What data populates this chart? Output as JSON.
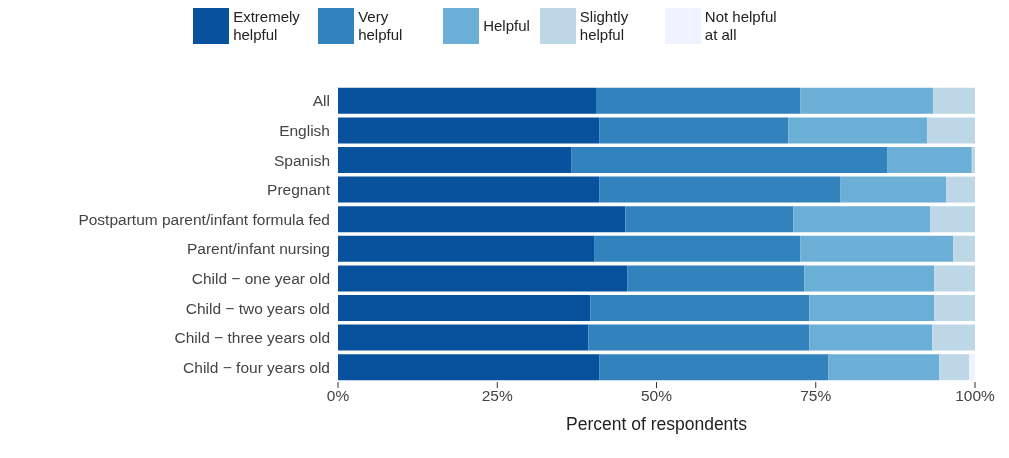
{
  "chart_data": {
    "type": "bar",
    "orientation": "horizontal",
    "stacked": true,
    "xlabel": "Percent of respondents",
    "categories": [
      "All",
      "English",
      "Spanish",
      "Pregnant",
      "Postpartum parent/infant formula fed",
      "Parent/infant nursing",
      "Child − one year old",
      "Child − two years old",
      "Child − three years old",
      "Child − four years old"
    ],
    "series": [
      {
        "name": "Extremely helpful",
        "color": "#08519c",
        "values": [
          40.5,
          41.0,
          36.6,
          41.0,
          45.1,
          40.2,
          45.4,
          39.6,
          39.3,
          41.0
        ]
      },
      {
        "name": "Very helpful",
        "color": "#3182bd",
        "values": [
          32.1,
          29.7,
          49.6,
          37.9,
          26.4,
          32.4,
          27.8,
          34.4,
          34.7,
          36.0
        ]
      },
      {
        "name": "Helpful",
        "color": "#6baed6",
        "values": [
          20.8,
          21.8,
          13.3,
          16.6,
          21.5,
          24.0,
          20.4,
          19.6,
          19.3,
          17.4
        ]
      },
      {
        "name": "Slightly helpful",
        "color": "#bdd7e7",
        "values": [
          6.6,
          7.5,
          0.5,
          4.5,
          7.0,
          3.4,
          6.4,
          6.4,
          6.7,
          4.7
        ]
      },
      {
        "name": "Not helpful at all",
        "color": "#eff3ff",
        "values": [
          0,
          0,
          0,
          0,
          0,
          0,
          0,
          0,
          0,
          0.9
        ]
      }
    ],
    "xlim": [
      0,
      100
    ],
    "xticks": [
      {
        "value": 0,
        "label": "0%"
      },
      {
        "value": 25,
        "label": "25%"
      },
      {
        "value": 50,
        "label": "50%"
      },
      {
        "value": 75,
        "label": "75%"
      },
      {
        "value": 100,
        "label": "100%"
      }
    ],
    "grid": false,
    "legend": "top"
  }
}
